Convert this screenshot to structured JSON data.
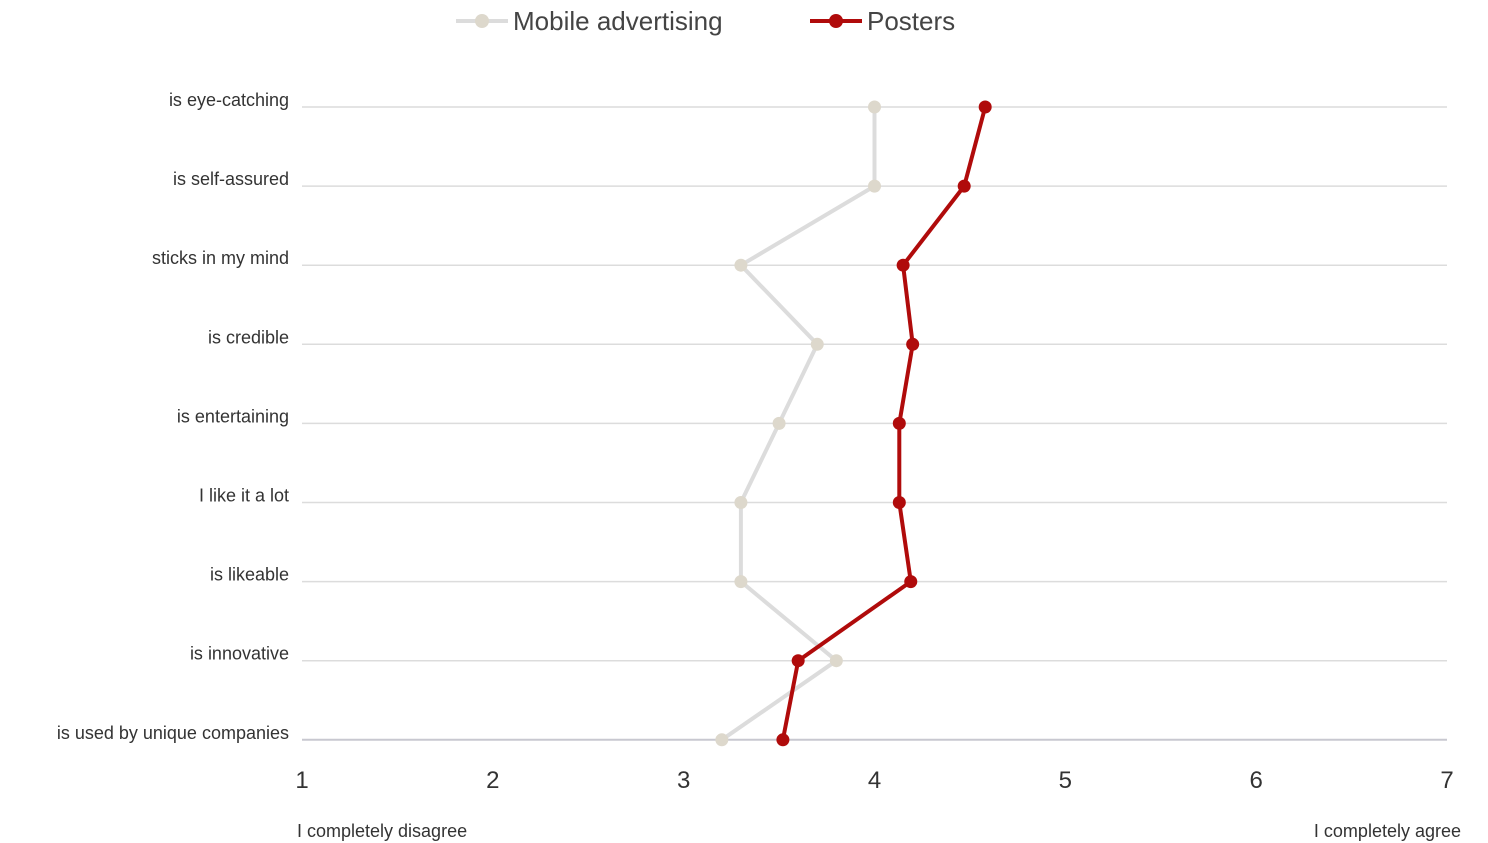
{
  "chart_data": {
    "type": "line",
    "orientation": "horizontal-values",
    "categories": [
      "is eye-catching",
      "is self-assured",
      "sticks in my mind",
      "is credible",
      "is entertaining",
      "I like it a lot",
      "is likeable",
      "is innovative",
      "is used by unique companies"
    ],
    "series": [
      {
        "name": "Mobile advertising",
        "color": "#ddd8cc",
        "line_color": "#dcdcdc",
        "values": [
          4.0,
          4.0,
          3.3,
          3.7,
          3.5,
          3.3,
          3.3,
          3.8,
          3.2
        ]
      },
      {
        "name": "Posters",
        "color": "#b00b0b",
        "line_color": "#b00b0b",
        "values": [
          4.58,
          4.47,
          4.15,
          4.2,
          4.13,
          4.13,
          4.19,
          3.6,
          3.52
        ]
      }
    ],
    "x_ticks": [
      "1",
      "2",
      "3",
      "4",
      "5",
      "6",
      "7"
    ],
    "xlim": [
      1,
      7
    ],
    "x_end_labels": {
      "left": "I completely disagree",
      "right": "I completely agree"
    },
    "legend_position": "top-center",
    "grid": true
  }
}
